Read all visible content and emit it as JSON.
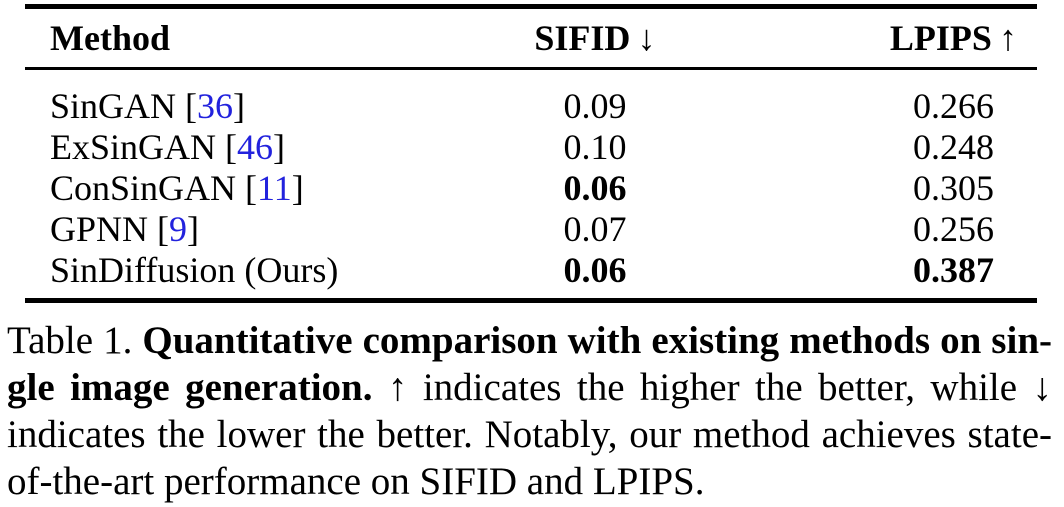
{
  "colors": {
    "citation": "#2222dd",
    "text": "#000000",
    "rule": "#000000"
  },
  "table": {
    "header": {
      "method": "Method",
      "sifid": "SIFID",
      "sifid_arrow": "↓",
      "lpips": "LPIPS",
      "lpips_arrow": "↑"
    },
    "rows": [
      {
        "method": "SinGAN",
        "cite": "36",
        "sifid": "0.09",
        "sifid_bold": false,
        "lpips": "0.266",
        "lpips_bold": false
      },
      {
        "method": "ExSinGAN",
        "cite": "46",
        "sifid": "0.10",
        "sifid_bold": false,
        "lpips": "0.248",
        "lpips_bold": false
      },
      {
        "method": "ConSinGAN",
        "cite": "11",
        "sifid": "0.06",
        "sifid_bold": true,
        "lpips": "0.305",
        "lpips_bold": false
      },
      {
        "method": "GPNN",
        "cite": "9",
        "sifid": "0.07",
        "sifid_bold": false,
        "lpips": "0.256",
        "lpips_bold": false
      },
      {
        "method": "SinDiffusion (Ours)",
        "cite": null,
        "sifid": "0.06",
        "sifid_bold": true,
        "lpips": "0.387",
        "lpips_bold": true
      }
    ]
  },
  "caption": {
    "lines": [
      {
        "normal_before": "Table 1. ",
        "bold": "Quantitative comparison with existing methods on sin-",
        "normal_after": ""
      },
      {
        "normal_before": "",
        "bold": "gle image generation.",
        "normal_after": " ↑ indicates the higher the better, while ↓"
      },
      {
        "normal_before": "",
        "bold": "",
        "normal_after": "indicates the lower the better. Notably, our method achieves state-"
      },
      {
        "normal_before": "",
        "bold": "",
        "normal_after": "of-the-art performance on SIFID and LPIPS."
      }
    ]
  }
}
